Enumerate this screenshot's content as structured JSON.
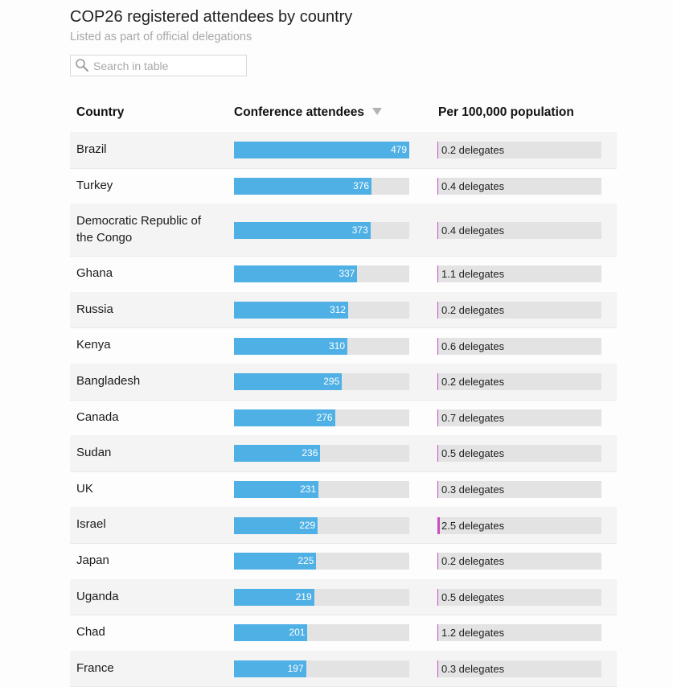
{
  "header": {
    "title": "COP26 registered attendees by country",
    "subtitle": "Listed as part of official delegations"
  },
  "search": {
    "placeholder": "Search in table",
    "icon": "search-icon"
  },
  "columns": {
    "country": "Country",
    "attendees": "Conference attendees",
    "per_capita": "Per 100,000 population"
  },
  "sort": {
    "column": "attendees",
    "direction": "descending"
  },
  "colors": {
    "bar": "#4fb0e6",
    "per_capita_bar": "#c94fbf",
    "track": "#e3e3e3"
  },
  "chart_data": {
    "type": "table",
    "max_attendees": 479,
    "max_per_capita": 2.5,
    "rows": [
      {
        "country": "Brazil",
        "attendees": 479,
        "per_capita": 0.2,
        "per_capita_label": "0.2 delegates"
      },
      {
        "country": "Turkey",
        "attendees": 376,
        "per_capita": 0.4,
        "per_capita_label": "0.4 delegates"
      },
      {
        "country": "Democratic Republic of the Congo",
        "attendees": 373,
        "per_capita": 0.4,
        "per_capita_label": "0.4 delegates"
      },
      {
        "country": "Ghana",
        "attendees": 337,
        "per_capita": 1.1,
        "per_capita_label": "1.1 delegates"
      },
      {
        "country": "Russia",
        "attendees": 312,
        "per_capita": 0.2,
        "per_capita_label": "0.2 delegates"
      },
      {
        "country": "Kenya",
        "attendees": 310,
        "per_capita": 0.6,
        "per_capita_label": "0.6 delegates"
      },
      {
        "country": "Bangladesh",
        "attendees": 295,
        "per_capita": 0.2,
        "per_capita_label": "0.2 delegates"
      },
      {
        "country": "Canada",
        "attendees": 276,
        "per_capita": 0.7,
        "per_capita_label": "0.7 delegates"
      },
      {
        "country": "Sudan",
        "attendees": 236,
        "per_capita": 0.5,
        "per_capita_label": "0.5 delegates"
      },
      {
        "country": "UK",
        "attendees": 231,
        "per_capita": 0.3,
        "per_capita_label": "0.3 delegates"
      },
      {
        "country": "Israel",
        "attendees": 229,
        "per_capita": 2.5,
        "per_capita_label": "2.5 delegates"
      },
      {
        "country": "Japan",
        "attendees": 225,
        "per_capita": 0.2,
        "per_capita_label": "0.2 delegates"
      },
      {
        "country": "Uganda",
        "attendees": 219,
        "per_capita": 0.5,
        "per_capita_label": "0.5 delegates"
      },
      {
        "country": "Chad",
        "attendees": 201,
        "per_capita": 1.2,
        "per_capita_label": "1.2 delegates"
      },
      {
        "country": "France",
        "attendees": 197,
        "per_capita": 0.3,
        "per_capita_label": "0.3 delegates"
      }
    ]
  }
}
